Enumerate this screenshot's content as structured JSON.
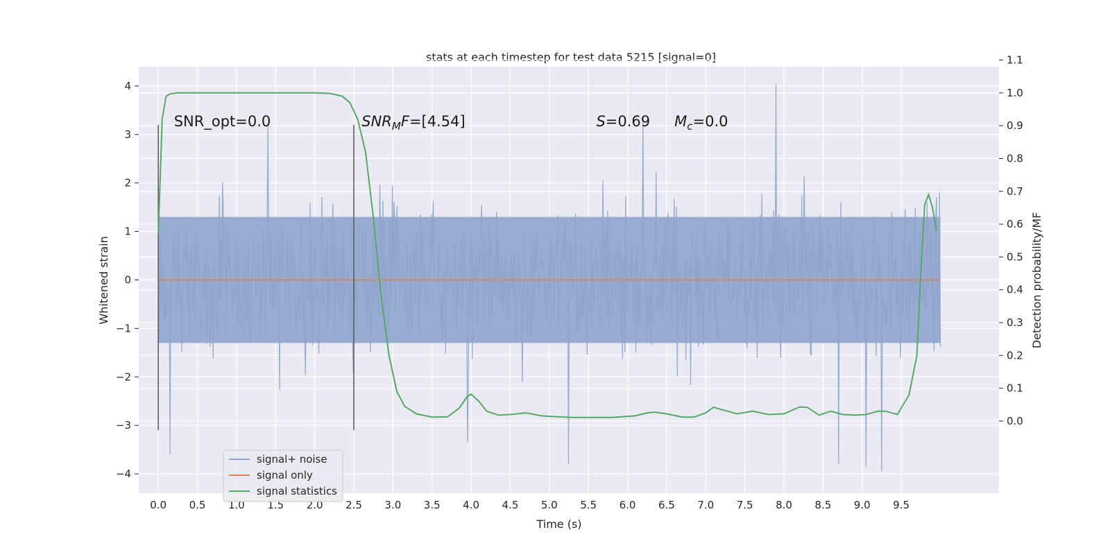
{
  "chart_data": {
    "type": "line",
    "title": "stats at each timestep for test data 5215 [signal=0]",
    "xlabel": "Time (s)",
    "ylabel": "Whitened strain",
    "ylabel_right": "Detection probability/MF",
    "xlim": [
      -0.25,
      10.75
    ],
    "ylim": [
      -4.4,
      4.4
    ],
    "ylim_right": [
      -0.22,
      1.08
    ],
    "x_ticks": [
      0.0,
      0.5,
      1.0,
      1.5,
      2.0,
      2.5,
      3.0,
      3.5,
      4.0,
      4.5,
      5.0,
      5.5,
      6.0,
      6.5,
      7.0,
      7.5,
      8.0,
      8.5,
      9.0,
      9.5
    ],
    "x_tick_labels": [
      "0.0",
      "0.5",
      "1.0",
      "1.5",
      "2.0",
      "2.5",
      "3.0",
      "3.5",
      "4.0",
      "4.5",
      "5.0",
      "5.5",
      "6.0",
      "6.5",
      "7.0",
      "7.5",
      "8.0",
      "8.5",
      "9.0",
      "9.5"
    ],
    "y_ticks": [
      -4,
      -3,
      -2,
      -1,
      0,
      1,
      2,
      3,
      4
    ],
    "y_tick_labels": [
      "−4",
      "−3",
      "−2",
      "−1",
      "0",
      "1",
      "2",
      "3",
      "4"
    ],
    "y_ticks_right": [
      0.0,
      0.1,
      0.2,
      0.3,
      0.4,
      0.5,
      0.6,
      0.7,
      0.8,
      0.9,
      1.0,
      1.1
    ],
    "y_tick_labels_right": [
      "0.0",
      "0.1",
      "0.2",
      "0.3",
      "0.4",
      "0.5",
      "0.6",
      "0.7",
      "0.8",
      "0.9",
      "1.0",
      "1.1"
    ],
    "grid": true,
    "legend_position": "lower-left",
    "colors": {
      "background": "#eaeaf2",
      "grid": "#ffffff",
      "noise": "#8fa4cc",
      "signal_only": "#dd8452",
      "statistics": "#55a868",
      "marker": "#555555"
    },
    "series": [
      {
        "name": "signal+ noise",
        "axis": "left",
        "x_range": [
          0.0,
          10.0
        ],
        "envelope_typical": [
          -1.3,
          1.3
        ],
        "spike_range": [
          -3.95,
          4.05
        ],
        "notable_spikes": [
          [
            7.9,
            4.05
          ],
          [
            1.4,
            3.2
          ],
          [
            6.2,
            3.35
          ],
          [
            9.25,
            -3.95
          ],
          [
            5.25,
            -3.8
          ],
          [
            0.15,
            -3.6
          ],
          [
            3.95,
            -3.35
          ],
          [
            8.7,
            -3.8
          ],
          [
            9.05,
            -3.85
          ]
        ]
      },
      {
        "name": "signal only",
        "axis": "left",
        "x": [
          0.0,
          10.0
        ],
        "y": [
          0.0,
          0.0
        ]
      },
      {
        "name": "signal statistics",
        "axis": "right",
        "x": [
          0.0,
          0.05,
          0.1,
          0.15,
          0.25,
          0.5,
          1.0,
          1.5,
          2.0,
          2.2,
          2.35,
          2.45,
          2.55,
          2.65,
          2.75,
          2.85,
          2.95,
          3.05,
          3.15,
          3.3,
          3.5,
          3.7,
          3.85,
          3.95,
          4.0,
          4.1,
          4.2,
          4.35,
          4.5,
          4.7,
          4.9,
          5.1,
          5.3,
          5.5,
          5.8,
          6.1,
          6.25,
          6.35,
          6.5,
          6.7,
          6.85,
          7.0,
          7.1,
          7.25,
          7.4,
          7.6,
          7.8,
          8.0,
          8.2,
          8.3,
          8.45,
          8.6,
          8.75,
          8.9,
          9.05,
          9.2,
          9.3,
          9.45,
          9.6,
          9.7,
          9.75,
          9.8,
          9.85,
          9.9,
          9.95
        ],
        "y": [
          0.57,
          0.92,
          0.99,
          0.997,
          1.0,
          1.0,
          1.0,
          1.0,
          1.0,
          0.998,
          0.99,
          0.97,
          0.92,
          0.82,
          0.62,
          0.38,
          0.2,
          0.09,
          0.045,
          0.022,
          0.012,
          0.013,
          0.04,
          0.075,
          0.082,
          0.06,
          0.03,
          0.018,
          0.02,
          0.025,
          0.016,
          0.013,
          0.011,
          0.011,
          0.011,
          0.016,
          0.025,
          0.027,
          0.022,
          0.012,
          0.012,
          0.025,
          0.042,
          0.032,
          0.022,
          0.03,
          0.02,
          0.022,
          0.043,
          0.042,
          0.018,
          0.03,
          0.02,
          0.018,
          0.02,
          0.03,
          0.03,
          0.02,
          0.08,
          0.2,
          0.45,
          0.66,
          0.69,
          0.65,
          0.58
        ]
      }
    ],
    "vertical_markers": [
      {
        "x": 0.0,
        "y": [
          -3.1,
          3.2
        ]
      },
      {
        "x": 2.5,
        "y": [
          -3.1,
          3.2
        ]
      }
    ],
    "annotations": [
      {
        "x": 0.2,
        "text_parts": [
          {
            "t": "SNR_opt=0.0",
            "style": "normal"
          }
        ]
      },
      {
        "x": 2.6,
        "text_parts": [
          {
            "t": "SNR",
            "style": "italic"
          },
          {
            "t": "M",
            "style": "sub-italic"
          },
          {
            "t": "F",
            "style": "italic"
          },
          {
            "t": "=[4.54]",
            "style": "normal"
          }
        ]
      },
      {
        "x": 5.6,
        "text_parts": [
          {
            "t": "S",
            "style": "italic"
          },
          {
            "t": "=0.69",
            "style": "normal"
          }
        ]
      },
      {
        "x": 6.6,
        "text_parts": [
          {
            "t": "M",
            "style": "italic"
          },
          {
            "t": "c",
            "style": "sub-italic"
          },
          {
            "t": "=0.0",
            "style": "normal"
          }
        ]
      }
    ],
    "annotation_y": 3.2
  }
}
